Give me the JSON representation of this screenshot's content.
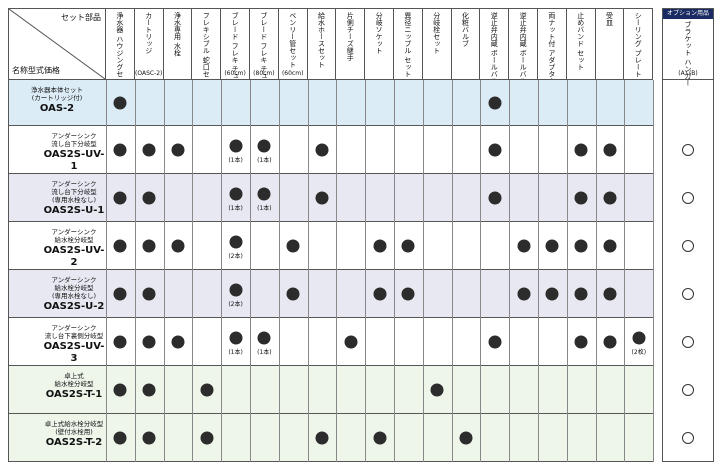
{
  "header": {
    "corner_set": "セット部品",
    "corner_name": "名称型式価格",
    "option_title": "オプション用品",
    "columns": [
      {
        "label": "浄水器\nハウジングセット",
        "note": ""
      },
      {
        "label": "カートリッジ",
        "note": "(OASC-2)"
      },
      {
        "label": "浄水専用\n水栓",
        "note": ""
      },
      {
        "label": "フレキシブル\n蛇口セット",
        "note": ""
      },
      {
        "label": "ブレード\nフレキ\nチューブ",
        "note": "(60cm)"
      },
      {
        "label": "ブレード\nフレキ\nチューブ",
        "note": "(80cm)"
      },
      {
        "label": "ベンリー管セット",
        "note": "(60cm)"
      },
      {
        "label": "給水ホースセット",
        "note": ""
      },
      {
        "label": "片側チーズ継手",
        "note": ""
      },
      {
        "label": "分岐ソケット",
        "note": ""
      },
      {
        "label": "異径ニップル\nセット",
        "note": ""
      },
      {
        "label": "分岐栓セット",
        "note": ""
      },
      {
        "label": "化粧バルブ",
        "note": ""
      },
      {
        "label": "逆止弁内蔵\nボールバルブ\n(メス・オス)",
        "note": ""
      },
      {
        "label": "逆止弁内蔵\nボールバルブ\n(オス・オス)",
        "note": ""
      },
      {
        "label": "両ナット付\nアダプター",
        "note": ""
      },
      {
        "label": "止めバンド\nセット",
        "note": ""
      },
      {
        "label": "受皿",
        "note": ""
      },
      {
        "label": "シーリング\nプレート",
        "note": ""
      }
    ],
    "option_column": {
      "label": "ブラケット\nハンガー",
      "note": "(A)  (B)"
    }
  },
  "groups": [
    {
      "label": "アンダーシンク",
      "color": "#1a2b63"
    },
    {
      "label": "卓上",
      "color": "#2e8a3a"
    }
  ],
  "rows": [
    {
      "desc": "浄水器本体セット\n(カートリッジ付)",
      "model": "OAS-2",
      "dots": [
        1,
        0,
        0,
        0,
        0,
        0,
        0,
        0,
        0,
        0,
        0,
        0,
        0,
        1,
        0,
        0,
        0,
        0,
        0
      ],
      "notes": {},
      "option": false
    },
    {
      "desc": "アンダーシンク\n流し台下分岐型",
      "model": "OAS2S-UV-1",
      "dots": [
        1,
        1,
        1,
        0,
        1,
        1,
        0,
        1,
        0,
        0,
        0,
        0,
        0,
        1,
        0,
        0,
        1,
        1,
        0
      ],
      "notes": {
        "4": "(1本)",
        "5": "(1本)"
      },
      "option": true
    },
    {
      "desc": "アンダーシンク\n流し台下分岐型\n(専用水栓なし)",
      "model": "OAS2S-U-1",
      "dots": [
        1,
        1,
        0,
        0,
        1,
        1,
        0,
        1,
        0,
        0,
        0,
        0,
        0,
        1,
        0,
        0,
        1,
        1,
        0
      ],
      "notes": {
        "4": "(1本)",
        "5": "(1本)"
      },
      "option": true
    },
    {
      "desc": "アンダーシンク\n給水栓分岐型",
      "model": "OAS2S-UV-2",
      "dots": [
        1,
        1,
        1,
        0,
        1,
        0,
        1,
        0,
        0,
        1,
        1,
        0,
        0,
        0,
        1,
        1,
        1,
        1,
        0
      ],
      "notes": {
        "4": "(2本)"
      },
      "option": true
    },
    {
      "desc": "アンダーシンク\n給水栓分岐型\n(専用水栓なし)",
      "model": "OAS2S-U-2",
      "dots": [
        1,
        1,
        0,
        0,
        1,
        0,
        1,
        0,
        0,
        1,
        1,
        0,
        0,
        0,
        1,
        1,
        1,
        1,
        0
      ],
      "notes": {
        "4": "(2本)"
      },
      "option": true
    },
    {
      "desc": "アンダーシンク\n流し台下裏側分岐型",
      "model": "OAS2S-UV-3",
      "dots": [
        1,
        1,
        1,
        0,
        1,
        1,
        0,
        0,
        1,
        0,
        0,
        0,
        0,
        1,
        0,
        0,
        1,
        1,
        1
      ],
      "notes": {
        "4": "(1本)",
        "5": "(1本)",
        "18": "(2枚)"
      },
      "option": true
    },
    {
      "desc": "卓上式\n給水栓分岐型",
      "model": "OAS2S-T-1",
      "dots": [
        1,
        1,
        0,
        1,
        0,
        0,
        0,
        0,
        0,
        0,
        0,
        1,
        0,
        0,
        0,
        0,
        0,
        0,
        0
      ],
      "notes": {},
      "option": true
    },
    {
      "desc": "卓上式給水栓分岐型\n(壁付水栓用)",
      "model": "OAS2S-T-2",
      "dots": [
        1,
        1,
        0,
        1,
        0,
        0,
        0,
        1,
        0,
        1,
        0,
        0,
        1,
        0,
        0,
        0,
        0,
        0,
        0
      ],
      "notes": {},
      "option": true
    }
  ]
}
